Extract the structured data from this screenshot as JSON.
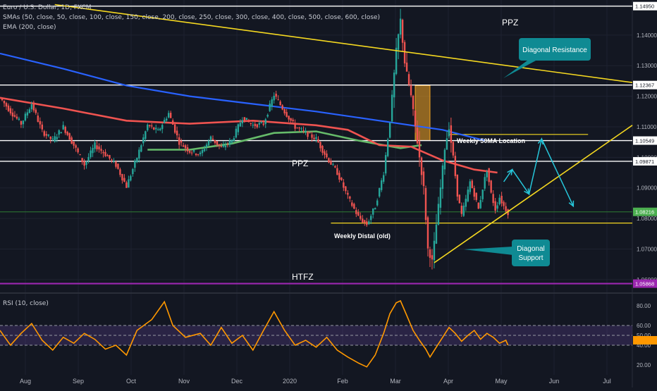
{
  "header": {
    "symbol": "Euro / U.S. Dollar, 1D, FXCM",
    "sma_study": "SMAs (50, close, 50, close, 100, close, 150, close, 200, close, 250, close, 300, close, 400, close, 500, close, 600, close)",
    "ema_study": "EMA (200, close)"
  },
  "rsi_panel": {
    "label": "RSI (10, close)"
  },
  "colors": {
    "background": "#131722",
    "up_candle": "#26a69a",
    "down_candle": "#ef5350",
    "ema_200": "#ef5350",
    "sma_slow": "#2962ff",
    "sma_mid": "#66bb6a",
    "trendline": "#f5d820",
    "zone_line": "#ffffff",
    "htfz_line": "#9c27b0",
    "rsi_line": "#ff9800",
    "callout": "#0f8a93",
    "projection": "#26c6da"
  },
  "chart_data": [
    {
      "type": "candlestick",
      "title": "Euro / U.S. Dollar, 1D, FXCM",
      "x_tick_labels": [
        "Aug",
        "Sep",
        "Oct",
        "Nov",
        "Dec",
        "2020",
        "Feb",
        "Mar",
        "Apr",
        "May",
        "Jun",
        "Jul"
      ],
      "y_tick_labels": [
        "1.15000",
        "1.14000",
        "1.13000",
        "1.12000",
        "1.11000",
        "1.10000",
        "1.09000",
        "1.08000",
        "1.07000",
        "1.06000"
      ],
      "ylim": [
        1.0565,
        1.1515
      ],
      "price_levels": [
        {
          "value": "1.14950",
          "color": "#ffffff"
        },
        {
          "value": "1.12367",
          "color": "#ffffff"
        },
        {
          "value": "1.10549",
          "color": "#ffffff"
        },
        {
          "value": "1.09871",
          "color": "#ffffff"
        },
        {
          "value": "1.08216",
          "color": "#4caf50"
        },
        {
          "value": "1.05868",
          "color": "#9c27b0"
        }
      ],
      "levels_numeric": {
        "ppz_top": 1.1495,
        "zone_1": 1.12367,
        "weekly_50ma": 1.10549,
        "ppz_mid": 1.09871,
        "current_price": 1.08216,
        "weekly_distal": 1.0785,
        "htfz": 1.05868
      },
      "annotations": {
        "ppz_top": "PPZ",
        "ppz_mid": "PPZ",
        "htfz": "HTFZ",
        "weekly_50ma": "Weekly 50MA Location",
        "weekly_distal": "Weekly Distal (old)",
        "diagonal_resistance": "Diagonal Resistance",
        "diagonal_support": "Diagonal\nSupport"
      },
      "close_path": [
        {
          "x": 0,
          "y": 1.1195
        },
        {
          "x": 5,
          "y": 1.115
        },
        {
          "x": 10,
          "y": 1.111
        },
        {
          "x": 15,
          "y": 1.1175
        },
        {
          "x": 20,
          "y": 1.1085
        },
        {
          "x": 25,
          "y": 1.1055
        },
        {
          "x": 30,
          "y": 1.11
        },
        {
          "x": 35,
          "y": 1.104
        },
        {
          "x": 40,
          "y": 1.0975
        },
        {
          "x": 45,
          "y": 1.104
        },
        {
          "x": 50,
          "y": 1.101
        },
        {
          "x": 55,
          "y": 1.0975
        },
        {
          "x": 60,
          "y": 1.0905
        },
        {
          "x": 65,
          "y": 1.1
        },
        {
          "x": 70,
          "y": 1.1105
        },
        {
          "x": 75,
          "y": 1.1085
        },
        {
          "x": 80,
          "y": 1.1145
        },
        {
          "x": 85,
          "y": 1.105
        },
        {
          "x": 90,
          "y": 1.102
        },
        {
          "x": 95,
          "y": 1.101
        },
        {
          "x": 100,
          "y": 1.1065
        },
        {
          "x": 105,
          "y": 1.103
        },
        {
          "x": 110,
          "y": 1.1055
        },
        {
          "x": 115,
          "y": 1.113
        },
        {
          "x": 120,
          "y": 1.1105
        },
        {
          "x": 125,
          "y": 1.111
        },
        {
          "x": 130,
          "y": 1.1205
        },
        {
          "x": 135,
          "y": 1.115
        },
        {
          "x": 140,
          "y": 1.11
        },
        {
          "x": 145,
          "y": 1.108
        },
        {
          "x": 150,
          "y": 1.106
        },
        {
          "x": 155,
          "y": 1.1
        },
        {
          "x": 160,
          "y": 1.095
        },
        {
          "x": 165,
          "y": 1.087
        },
        {
          "x": 170,
          "y": 1.0805
        },
        {
          "x": 174,
          "y": 1.078
        },
        {
          "x": 178,
          "y": 1.084
        },
        {
          "x": 182,
          "y": 1.095
        },
        {
          "x": 185,
          "y": 1.112
        },
        {
          "x": 188,
          "y": 1.135
        },
        {
          "x": 190,
          "y": 1.145
        },
        {
          "x": 192,
          "y": 1.131
        },
        {
          "x": 195,
          "y": 1.12
        },
        {
          "x": 198,
          "y": 1.105
        },
        {
          "x": 201,
          "y": 1.09
        },
        {
          "x": 203,
          "y": 1.07
        },
        {
          "x": 205,
          "y": 1.066
        },
        {
          "x": 207,
          "y": 1.078
        },
        {
          "x": 209,
          "y": 1.09
        },
        {
          "x": 211,
          "y": 1.103
        },
        {
          "x": 213,
          "y": 1.11
        },
        {
          "x": 215,
          "y": 1.1
        },
        {
          "x": 217,
          "y": 1.088
        },
        {
          "x": 219,
          "y": 1.081
        },
        {
          "x": 221,
          "y": 1.086
        },
        {
          "x": 223,
          "y": 1.092
        },
        {
          "x": 225,
          "y": 1.088
        },
        {
          "x": 227,
          "y": 1.083
        },
        {
          "x": 229,
          "y": 1.09
        },
        {
          "x": 231,
          "y": 1.096
        },
        {
          "x": 233,
          "y": 1.088
        },
        {
          "x": 235,
          "y": 1.083
        },
        {
          "x": 237,
          "y": 1.087
        },
        {
          "x": 239,
          "y": 1.084
        },
        {
          "x": 241,
          "y": 1.082
        }
      ],
      "ema_200": [
        {
          "x": 0,
          "y": 1.1195
        },
        {
          "x": 30,
          "y": 1.116
        },
        {
          "x": 60,
          "y": 1.112
        },
        {
          "x": 90,
          "y": 1.111
        },
        {
          "x": 120,
          "y": 1.112
        },
        {
          "x": 150,
          "y": 1.1105
        },
        {
          "x": 165,
          "y": 1.109
        },
        {
          "x": 180,
          "y": 1.104
        },
        {
          "x": 195,
          "y": 1.1035
        },
        {
          "x": 210,
          "y": 1.099
        },
        {
          "x": 225,
          "y": 1.096
        },
        {
          "x": 236,
          "y": 1.095
        }
      ],
      "sma_slow": [
        {
          "x": 0,
          "y": 1.134
        },
        {
          "x": 30,
          "y": 1.129
        },
        {
          "x": 60,
          "y": 1.1235
        },
        {
          "x": 90,
          "y": 1.12
        },
        {
          "x": 120,
          "y": 1.1175
        },
        {
          "x": 150,
          "y": 1.115
        },
        {
          "x": 180,
          "y": 1.112
        },
        {
          "x": 210,
          "y": 1.109
        },
        {
          "x": 230,
          "y": 1.1055
        }
      ],
      "sma_mid": [
        {
          "x": 70,
          "y": 1.1025
        },
        {
          "x": 90,
          "y": 1.1025
        },
        {
          "x": 110,
          "y": 1.1045
        },
        {
          "x": 130,
          "y": 1.108
        },
        {
          "x": 150,
          "y": 1.1085
        },
        {
          "x": 170,
          "y": 1.1055
        },
        {
          "x": 190,
          "y": 1.103
        },
        {
          "x": 200,
          "y": 1.104
        }
      ],
      "diagonal_resistance_line": [
        {
          "x": 26,
          "y": 1.15
        },
        {
          "x": 300,
          "y": 1.1245
        }
      ],
      "diagonal_support_line": [
        {
          "x": 206,
          "y": 1.0655
        },
        {
          "x": 300,
          "y": 1.1105
        }
      ],
      "projection_path": [
        {
          "x": 239,
          "y": 1.092
        },
        {
          "x": 243,
          "y": 1.096
        },
        {
          "x": 251,
          "y": 1.088
        },
        {
          "x": 257,
          "y": 1.106
        },
        {
          "x": 272,
          "y": 1.084
        }
      ],
      "highlight_zone": {
        "x_start": 197,
        "x_end": 204,
        "y_low": 1.1055,
        "y_high": 1.1235
      }
    },
    {
      "type": "line",
      "title": "RSI (10, close)",
      "y_tick_labels": [
        "80.00",
        "60.00",
        "50.00",
        "40.00",
        "20.00"
      ],
      "ylim": [
        10,
        90
      ],
      "reference_levels": [
        60,
        50,
        40
      ],
      "band": [
        40,
        60
      ],
      "rsi": [
        {
          "x": 0,
          "y": 55
        },
        {
          "x": 5,
          "y": 40
        },
        {
          "x": 10,
          "y": 52
        },
        {
          "x": 15,
          "y": 62
        },
        {
          "x": 20,
          "y": 45
        },
        {
          "x": 25,
          "y": 35
        },
        {
          "x": 30,
          "y": 48
        },
        {
          "x": 35,
          "y": 42
        },
        {
          "x": 40,
          "y": 52
        },
        {
          "x": 45,
          "y": 46
        },
        {
          "x": 50,
          "y": 36
        },
        {
          "x": 55,
          "y": 40
        },
        {
          "x": 60,
          "y": 30
        },
        {
          "x": 65,
          "y": 55
        },
        {
          "x": 72,
          "y": 66
        },
        {
          "x": 78,
          "y": 84
        },
        {
          "x": 82,
          "y": 60
        },
        {
          "x": 88,
          "y": 48
        },
        {
          "x": 95,
          "y": 52
        },
        {
          "x": 100,
          "y": 40
        },
        {
          "x": 105,
          "y": 58
        },
        {
          "x": 110,
          "y": 42
        },
        {
          "x": 115,
          "y": 50
        },
        {
          "x": 120,
          "y": 35
        },
        {
          "x": 125,
          "y": 55
        },
        {
          "x": 130,
          "y": 74
        },
        {
          "x": 135,
          "y": 55
        },
        {
          "x": 140,
          "y": 40
        },
        {
          "x": 145,
          "y": 45
        },
        {
          "x": 150,
          "y": 38
        },
        {
          "x": 155,
          "y": 48
        },
        {
          "x": 160,
          "y": 35
        },
        {
          "x": 165,
          "y": 28
        },
        {
          "x": 170,
          "y": 22
        },
        {
          "x": 174,
          "y": 18
        },
        {
          "x": 178,
          "y": 30
        },
        {
          "x": 182,
          "y": 52
        },
        {
          "x": 185,
          "y": 72
        },
        {
          "x": 188,
          "y": 83
        },
        {
          "x": 190,
          "y": 85
        },
        {
          "x": 193,
          "y": 70
        },
        {
          "x": 196,
          "y": 55
        },
        {
          "x": 199,
          "y": 45
        },
        {
          "x": 202,
          "y": 36
        },
        {
          "x": 204,
          "y": 28
        },
        {
          "x": 207,
          "y": 38
        },
        {
          "x": 210,
          "y": 48
        },
        {
          "x": 213,
          "y": 58
        },
        {
          "x": 216,
          "y": 52
        },
        {
          "x": 219,
          "y": 44
        },
        {
          "x": 222,
          "y": 50
        },
        {
          "x": 225,
          "y": 55
        },
        {
          "x": 228,
          "y": 46
        },
        {
          "x": 231,
          "y": 52
        },
        {
          "x": 234,
          "y": 48
        },
        {
          "x": 237,
          "y": 42
        },
        {
          "x": 240,
          "y": 45
        },
        {
          "x": 241,
          "y": 40
        }
      ]
    }
  ]
}
